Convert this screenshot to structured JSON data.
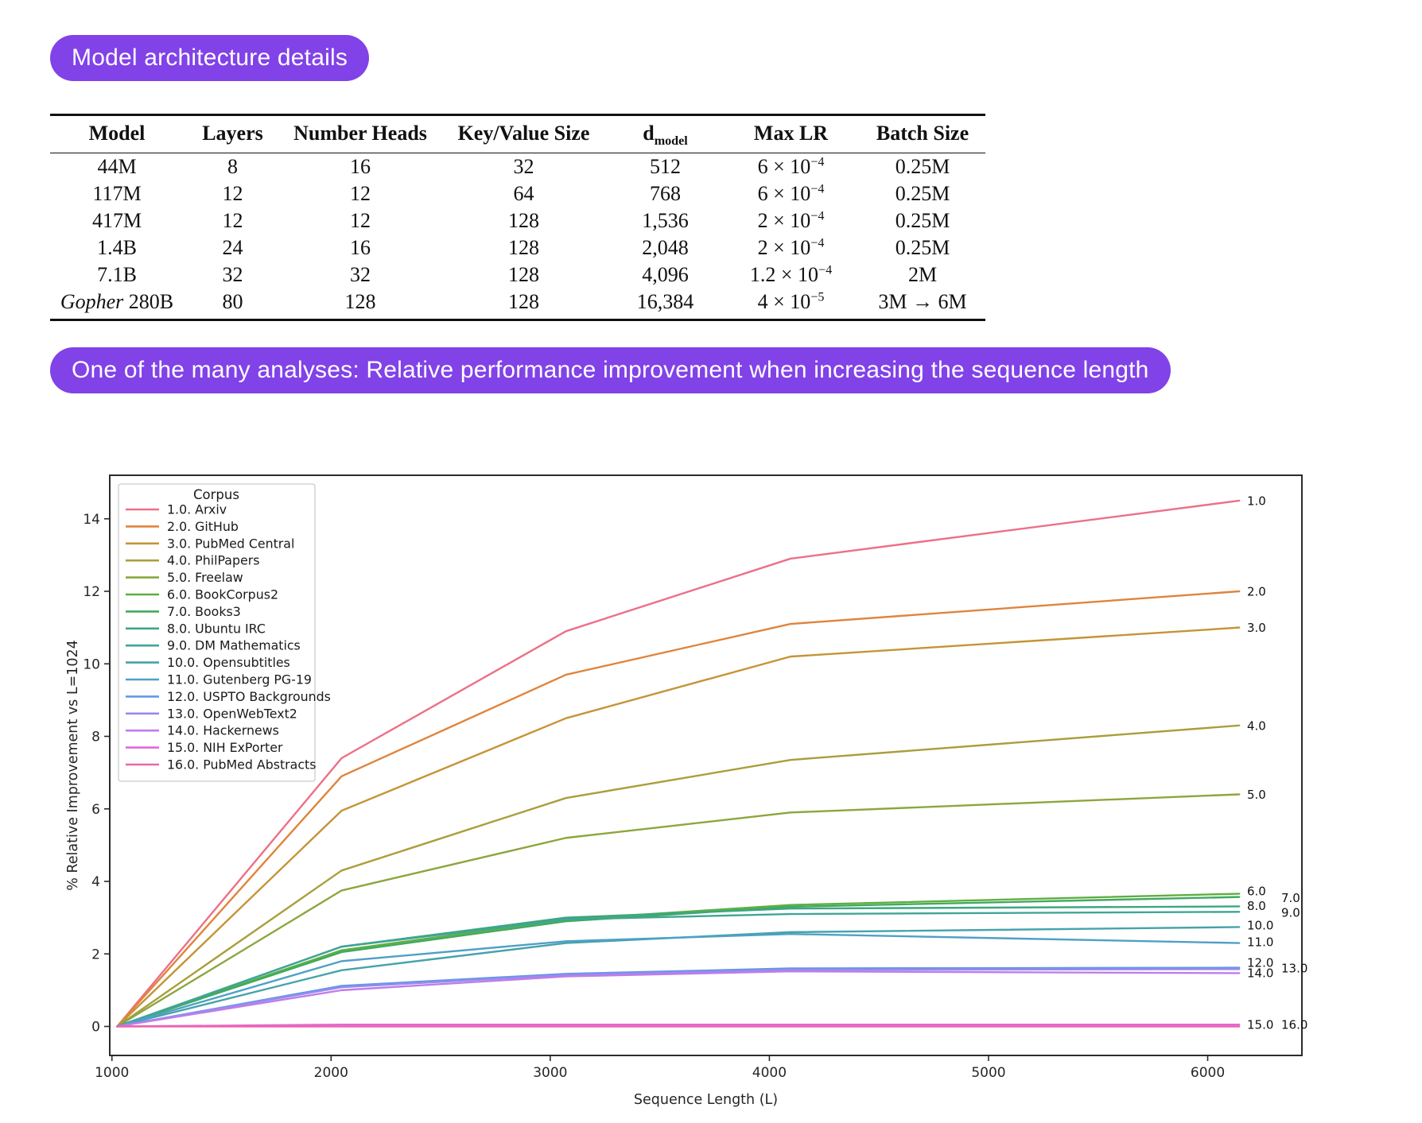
{
  "accent": "#8142e8",
  "badges": {
    "architecture": "Model architecture details",
    "analysis": "One of the many analyses: Relative performance improvement when increasing the sequence length"
  },
  "table": {
    "headers": [
      {
        "text": "Model"
      },
      {
        "text": "Layers"
      },
      {
        "text": "Number Heads"
      },
      {
        "text": "Key/Value Size"
      },
      {
        "text": "d",
        "sub": "model"
      },
      {
        "text": "Max LR"
      },
      {
        "text": "Batch Size"
      }
    ],
    "rows": [
      {
        "model": "44M",
        "layers": "8",
        "heads": "16",
        "kv": "32",
        "dmodel": "512",
        "lr_coef": "6",
        "lr_exp": "−4",
        "batch": "0.25M"
      },
      {
        "model": "117M",
        "layers": "12",
        "heads": "12",
        "kv": "64",
        "dmodel": "768",
        "lr_coef": "6",
        "lr_exp": "−4",
        "batch": "0.25M"
      },
      {
        "model": "417M",
        "layers": "12",
        "heads": "12",
        "kv": "128",
        "dmodel": "1,536",
        "lr_coef": "2",
        "lr_exp": "−4",
        "batch": "0.25M"
      },
      {
        "model": "1.4B",
        "layers": "24",
        "heads": "16",
        "kv": "128",
        "dmodel": "2,048",
        "lr_coef": "2",
        "lr_exp": "−4",
        "batch": "0.25M"
      },
      {
        "model": "7.1B",
        "layers": "32",
        "heads": "32",
        "kv": "128",
        "dmodel": "4,096",
        "lr_coef": "1.2",
        "lr_exp": "−4",
        "batch": "2M"
      },
      {
        "model_italic": "Gopher",
        "model": " 280B",
        "layers": "80",
        "heads": "128",
        "kv": "128",
        "dmodel": "16,384",
        "lr_coef": "4",
        "lr_exp": "−5",
        "batch": "3M → 6M"
      }
    ]
  },
  "chart_data": {
    "type": "line",
    "title": "",
    "xlabel": "Sequence Length (L)",
    "ylabel": "% Relative Improvement vs L=1024",
    "legend_title": "Corpus",
    "legend_position": "upper left",
    "grid": false,
    "x": [
      1024,
      2048,
      3072,
      4096,
      6144
    ],
    "xticks": [
      1000,
      2000,
      3000,
      4000,
      5000,
      6000
    ],
    "yticks": [
      0,
      2,
      4,
      6,
      8,
      10,
      12,
      14
    ],
    "xlim": [
      990,
      6430
    ],
    "ylim": [
      -0.8,
      15.2
    ],
    "series": [
      {
        "name": "1.0. Arxiv",
        "end_label": "1.0",
        "color": "#ec7087",
        "values": [
          0,
          7.4,
          10.9,
          12.9,
          14.5
        ],
        "label_v": 14.5,
        "label_col": 0
      },
      {
        "name": "2.0. GitHub",
        "end_label": "2.0",
        "color": "#e0843b",
        "values": [
          0,
          6.9,
          9.7,
          11.1,
          12.0
        ],
        "label_v": 12.0,
        "label_col": 0
      },
      {
        "name": "3.0. PubMed Central",
        "end_label": "3.0",
        "color": "#c59437",
        "values": [
          0,
          5.95,
          8.5,
          10.2,
          11.0
        ],
        "label_v": 11.0,
        "label_col": 0
      },
      {
        "name": "4.0. PhilPapers",
        "end_label": "4.0",
        "color": "#ab9e3b",
        "values": [
          0,
          4.3,
          6.3,
          7.35,
          8.3
        ],
        "label_v": 8.3,
        "label_col": 0
      },
      {
        "name": "5.0. Freelaw",
        "end_label": "5.0",
        "color": "#8ca63c",
        "values": [
          0,
          3.75,
          5.2,
          5.9,
          6.4
        ],
        "label_v": 6.4,
        "label_col": 0
      },
      {
        "name": "6.0. BookCorpus2",
        "end_label": "6.0",
        "color": "#5fae42",
        "values": [
          0,
          2.1,
          2.95,
          3.35,
          3.66
        ],
        "label_v": 3.74,
        "label_col": 0
      },
      {
        "name": "7.0. Books3",
        "end_label": "7.0",
        "color": "#41aa5e",
        "values": [
          0,
          2.05,
          2.9,
          3.3,
          3.57
        ],
        "label_v": 3.55,
        "label_col": 1
      },
      {
        "name": "8.0. Ubuntu IRC",
        "end_label": "8.0",
        "color": "#3ca77f",
        "values": [
          0,
          2.2,
          3.0,
          3.25,
          3.31
        ],
        "label_v": 3.33,
        "label_col": 0
      },
      {
        "name": "9.0. DM Mathematics",
        "end_label": "9.0",
        "color": "#3fa597",
        "values": [
          0,
          2.2,
          2.95,
          3.1,
          3.16
        ],
        "label_v": 3.15,
        "label_col": 1
      },
      {
        "name": "10.0. Opensubtitles",
        "end_label": "10.0",
        "color": "#46a3ab",
        "values": [
          0,
          1.55,
          2.3,
          2.6,
          2.74
        ],
        "label_v": 2.79,
        "label_col": 0
      },
      {
        "name": "11.0. Gutenberg PG-19",
        "end_label": "11.0",
        "color": "#4fa0c6",
        "values": [
          0,
          1.8,
          2.35,
          2.55,
          2.3
        ],
        "label_v": 2.33,
        "label_col": 0
      },
      {
        "name": "12.0. USPTO Backgrounds",
        "end_label": "12.0",
        "color": "#6397e5",
        "values": [
          0,
          1.12,
          1.45,
          1.6,
          1.62
        ],
        "label_v": 1.76,
        "label_col": 0
      },
      {
        "name": "13.0. OpenWebText2",
        "end_label": "13.0",
        "color": "#968bf0",
        "values": [
          0,
          1.08,
          1.42,
          1.56,
          1.58
        ],
        "label_v": 1.61,
        "label_col": 1
      },
      {
        "name": "14.0. Hackernews",
        "end_label": "14.0",
        "color": "#c07cea",
        "values": [
          0,
          1.0,
          1.38,
          1.52,
          1.47
        ],
        "label_v": 1.48,
        "label_col": 0
      },
      {
        "name": "15.0. NIH ExPorter",
        "end_label": "15.0",
        "color": "#e268da",
        "values": [
          0,
          0.05,
          0.05,
          0.05,
          0.05
        ],
        "label_v": 0.06,
        "label_col": 0
      },
      {
        "name": "16.0. PubMed Abstracts",
        "end_label": "16.0",
        "color": "#ee65ab",
        "values": [
          0,
          0.0,
          0.0,
          0.0,
          0.0
        ],
        "label_v": 0.06,
        "label_col": 1
      }
    ]
  }
}
